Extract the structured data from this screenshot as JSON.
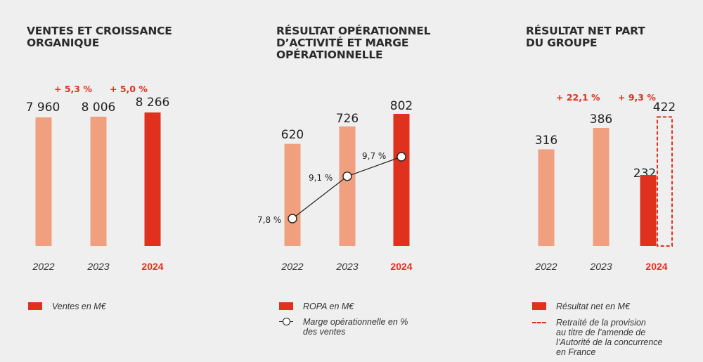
{
  "chart_data": [
    {
      "type": "bar",
      "title_lines": [
        "VENTES ET CROISSANCE",
        "ORGANIQUE"
      ],
      "categories": [
        "2022",
        "2023",
        "2024"
      ],
      "values": [
        7960,
        8006,
        8266
      ],
      "value_labels": [
        "7 960",
        "8 006",
        "8 266"
      ],
      "growth_labels": [
        "+ 5,3 %",
        "+ 5,0 %"
      ],
      "highlight_category": "2024",
      "legend": [
        "Ventes en M€"
      ]
    },
    {
      "type": "bar",
      "title_lines": [
        "RÉSULTAT OPÉRATIONNEL",
        "D’ACTIVITÉ ET MARGE",
        "OPÉRATIONNELLE"
      ],
      "categories": [
        "2022",
        "2023",
        "2024"
      ],
      "values": [
        620,
        726,
        802
      ],
      "value_labels": [
        "620",
        "726",
        "802"
      ],
      "line_series": {
        "name": "Marge opérationnelle en % des ventes",
        "values": [
          7.8,
          9.1,
          9.7
        ],
        "labels": [
          "7,8 %",
          "9,1 %",
          "9,7 %"
        ]
      },
      "highlight_category": "2024",
      "legend": [
        "ROPA en M€",
        "Marge opérationnelle en % des ventes"
      ]
    },
    {
      "type": "bar",
      "title_lines": [
        "RÉSULTAT NET PART",
        "DU GROUPE"
      ],
      "categories": [
        "2022",
        "2023",
        "2024"
      ],
      "values": [
        316,
        386,
        232
      ],
      "value_labels": [
        "316",
        "386",
        "232"
      ],
      "restated_value": 422,
      "restated_label": "422",
      "growth_labels": [
        "+ 22,1 %",
        "+ 9,3 %"
      ],
      "highlight_category": "2024",
      "legend": [
        "Résultat net en M€",
        "Retraité de la provision au titre de l’amende de l’Autorité de la concurrence en France"
      ]
    }
  ],
  "colors": {
    "accent": "#e0301e",
    "light": "#f0a07e",
    "background": "#efefef",
    "text": "#222222"
  },
  "legend_lines": {
    "margin": [
      "Marge opérationnelle en %",
      "des ventes"
    ],
    "restated": [
      "Retraité de la provision",
      "au titre de l’amende de",
      "l’Autorité de la concurrence",
      "en France"
    ]
  }
}
